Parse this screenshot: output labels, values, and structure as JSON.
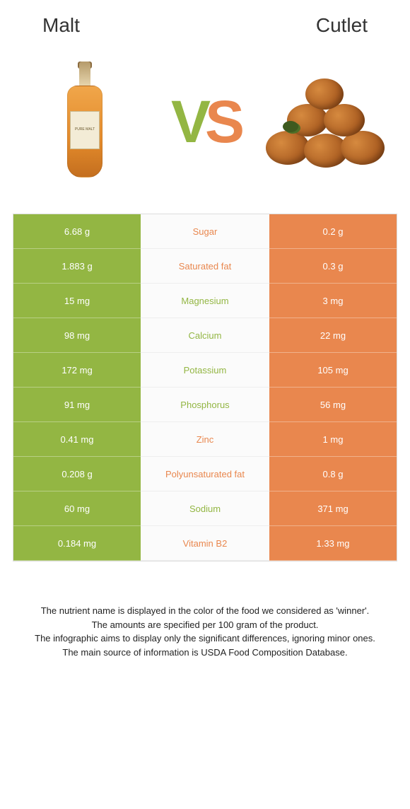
{
  "header": {
    "left": "Malt",
    "right": "Cutlet"
  },
  "vs": {
    "v": "V",
    "s": "S"
  },
  "colors": {
    "green": "#93b643",
    "orange": "#e9874e"
  },
  "table": {
    "rows": [
      {
        "left": "6.68 g",
        "label": "Sugar",
        "right": "0.2 g",
        "winner": "orange"
      },
      {
        "left": "1.883 g",
        "label": "Saturated fat",
        "right": "0.3 g",
        "winner": "orange"
      },
      {
        "left": "15 mg",
        "label": "Magnesium",
        "right": "3 mg",
        "winner": "green"
      },
      {
        "left": "98 mg",
        "label": "Calcium",
        "right": "22 mg",
        "winner": "green"
      },
      {
        "left": "172 mg",
        "label": "Potassium",
        "right": "105 mg",
        "winner": "green"
      },
      {
        "left": "91 mg",
        "label": "Phosphorus",
        "right": "56 mg",
        "winner": "green"
      },
      {
        "left": "0.41 mg",
        "label": "Zinc",
        "right": "1 mg",
        "winner": "orange"
      },
      {
        "left": "0.208 g",
        "label": "Polyunsaturated fat",
        "right": "0.8 g",
        "winner": "orange"
      },
      {
        "left": "60 mg",
        "label": "Sodium",
        "right": "371 mg",
        "winner": "green"
      },
      {
        "left": "0.184 mg",
        "label": "Vitamin B2",
        "right": "1.33 mg",
        "winner": "orange"
      }
    ]
  },
  "footer": {
    "l1": "The nutrient name is displayed in the color of the food we considered as 'winner'.",
    "l2": "The amounts are specified per 100 gram of the product.",
    "l3": "The infographic aims to display only the significant differences, ignoring minor ones.",
    "l4": "The main source of information is USDA Food Composition Database."
  },
  "bottle_label": "PURE MALT"
}
